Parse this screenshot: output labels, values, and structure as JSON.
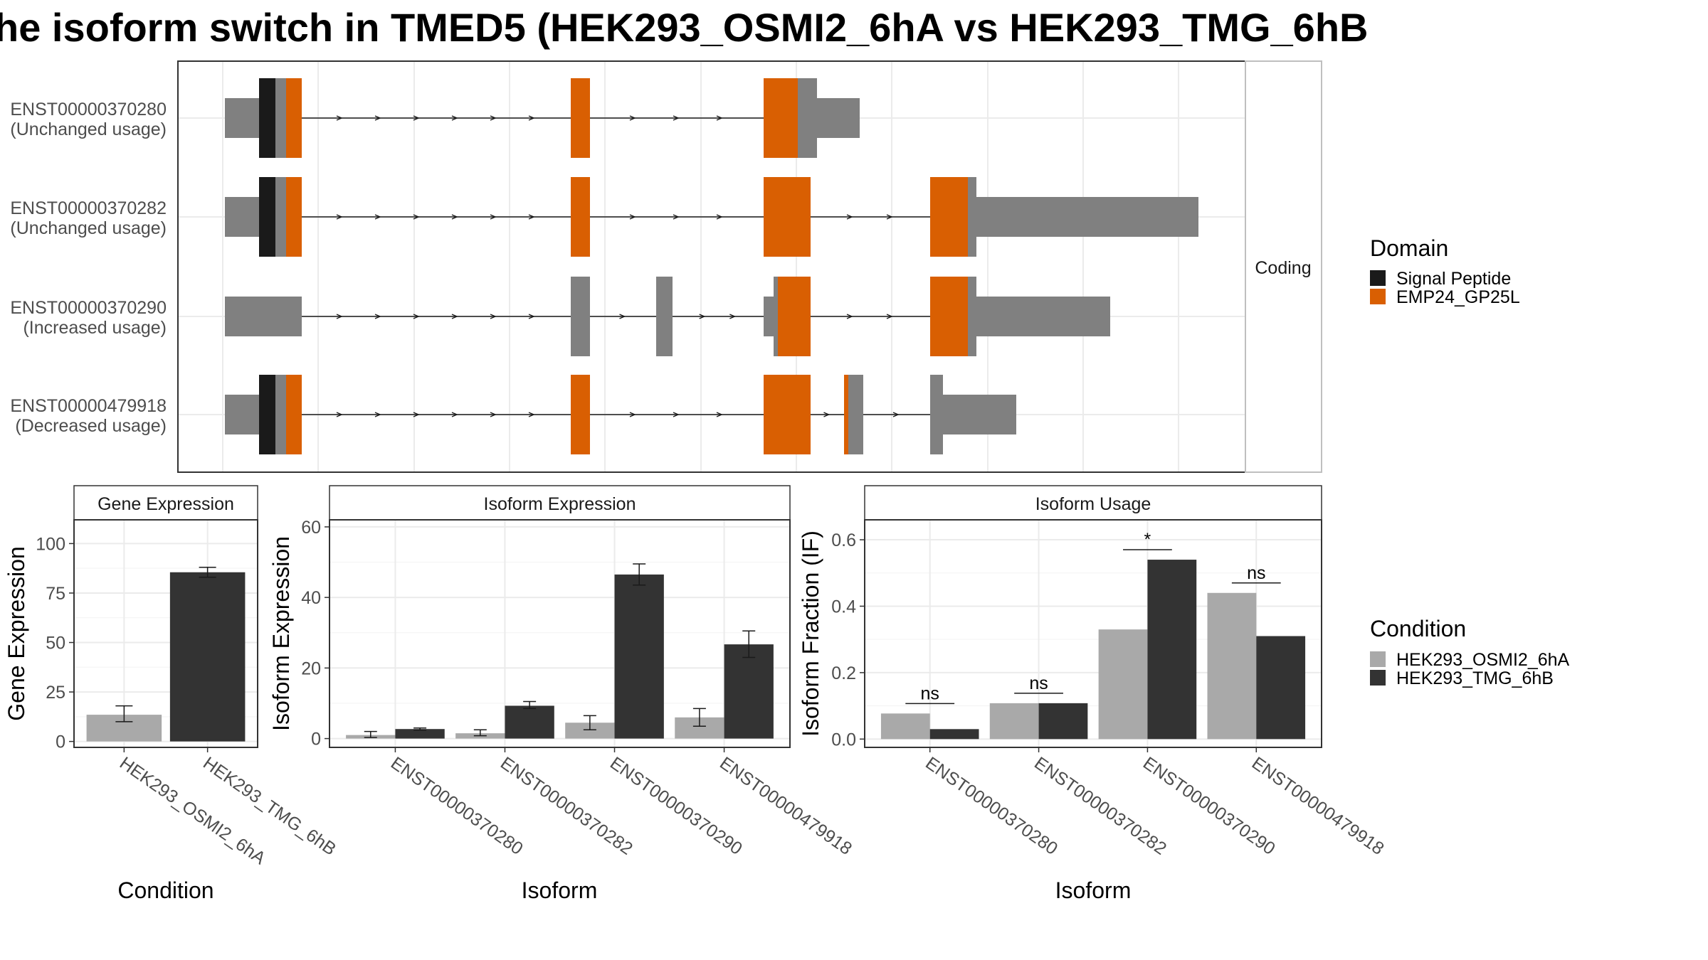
{
  "title": "he isoform switch in TMED5 (HEK293_OSMI2_6hA vs HEK293_TMG_6hB",
  "colors": {
    "exon": "#808080",
    "signal_peptide": "#1a1a1a",
    "emp24": "#d95f02",
    "condition_a": "#a9a9a9",
    "condition_b": "#333333",
    "panel_border": "#333333",
    "strip_bg": "#ffffff",
    "grid": "#ebebeb"
  },
  "structure_strip": "Coding",
  "domain_legend": {
    "title": "Domain",
    "items": [
      {
        "label": "Signal Peptide",
        "color": "#1a1a1a"
      },
      {
        "label": "EMP24_GP25L",
        "color": "#d95f02"
      }
    ]
  },
  "condition_legend": {
    "title": "Condition",
    "items": [
      {
        "label": "HEK293_OSMI2_6hA",
        "color": "#a9a9a9"
      },
      {
        "label": "HEK293_TMG_6hB",
        "color": "#333333"
      }
    ]
  },
  "isoforms": [
    {
      "id": "ENST00000370280",
      "usage": "(Unchanged usage)"
    },
    {
      "id": "ENST00000370282",
      "usage": "(Unchanged usage)"
    },
    {
      "id": "ENST00000370290",
      "usage": "(Increased usage)"
    },
    {
      "id": "ENST00000479918",
      "usage": "(Decreased usage)"
    }
  ],
  "chart_data": [
    {
      "type": "bar",
      "panel": "Gene Expression",
      "xlabel": "Condition",
      "ylabel": "Gene Expression",
      "categories": [
        "HEK293_OSMI2_6hA",
        "HEK293_TMG_6hB"
      ],
      "values": [
        13.5,
        85.5
      ],
      "errors_low": [
        10,
        83
      ],
      "errors_high": [
        18,
        88
      ],
      "ylim": [
        -3,
        112
      ],
      "yticks": [
        0,
        25,
        50,
        75,
        100
      ]
    },
    {
      "type": "bar",
      "panel": "Isoform Expression",
      "xlabel": "Isoform",
      "ylabel": "Isoform Expression",
      "categories": [
        "ENST00000370280",
        "ENST00000370282",
        "ENST00000370290",
        "ENST00000479918"
      ],
      "series": [
        {
          "name": "HEK293_OSMI2_6hA",
          "values": [
            1.0,
            1.5,
            4.5,
            6.0
          ],
          "errors_low": [
            0.3,
            0.8,
            2.5,
            3.5
          ],
          "errors_high": [
            2.0,
            2.5,
            6.5,
            8.5
          ]
        },
        {
          "name": "HEK293_TMG_6hB",
          "values": [
            2.7,
            9.3,
            46.5,
            26.7
          ],
          "errors_low": [
            2.4,
            8.5,
            43.5,
            23.0
          ],
          "errors_high": [
            3.0,
            10.5,
            49.5,
            30.5
          ]
        }
      ],
      "ylim": [
        -2.5,
        62
      ],
      "yticks": [
        0,
        20,
        40,
        60
      ]
    },
    {
      "type": "bar",
      "panel": "Isoform Usage",
      "xlabel": "Isoform",
      "ylabel": "Isoform Fraction (IF)",
      "categories": [
        "ENST00000370280",
        "ENST00000370282",
        "ENST00000370290",
        "ENST00000479918"
      ],
      "series": [
        {
          "name": "HEK293_OSMI2_6hA",
          "values": [
            0.077,
            0.108,
            0.33,
            0.44
          ]
        },
        {
          "name": "HEK293_TMG_6hB",
          "values": [
            0.03,
            0.108,
            0.54,
            0.31
          ]
        }
      ],
      "significance": [
        "ns",
        "ns",
        "*",
        "ns"
      ],
      "ylim": [
        -0.025,
        0.66
      ],
      "yticks": [
        0.0,
        0.2,
        0.4,
        0.6
      ],
      "ytick_labels": [
        "0.0",
        "0.2",
        "0.4",
        "0.6"
      ]
    }
  ]
}
